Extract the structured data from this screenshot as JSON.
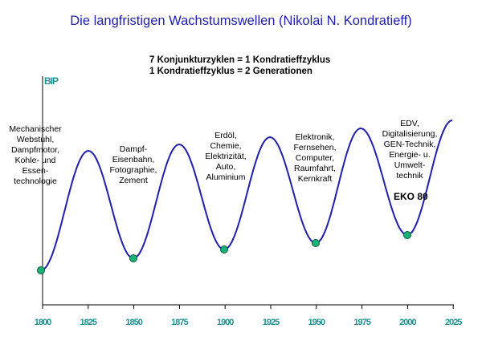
{
  "title": "Die langfristigen Wachstumswellen (Nikolai N. Kondratieff)",
  "subtitle_lines": [
    "7 Konjunkturzyklen = 1 Kondratieffzyklus",
    "1 Kondratieffzyklus = 2 Generationen"
  ],
  "y_axis_label": "BIP",
  "x_ticks": [
    "1800",
    "1825",
    "1850",
    "1875",
    "1900",
    "1925",
    "1950",
    "1975",
    "2000",
    "2025"
  ],
  "wave_labels": [
    [
      "Mechanischer",
      "Webstuhl,",
      "Dampfmotor,",
      "Kohle- und",
      "Essen-",
      "technologie"
    ],
    [
      "Dampf-",
      "Eisenbahn,",
      "Fotographie,",
      "Zement"
    ],
    [
      "Erdöl,",
      "Chemie,",
      "Elektrizität,",
      "Auto,",
      "Aluminium"
    ],
    [
      "Elektronik,",
      "Fernsehen,",
      "Computer,",
      "Raumfahrt,",
      "Kernkraft"
    ],
    [
      "EDV,",
      "Digitalisierung,",
      "GEN-Technik,",
      "Energie- u.",
      "Umwelt-",
      "technik"
    ]
  ],
  "eko_label": "EKO 80",
  "colors": {
    "title": "#1f1fa8",
    "axis_text": "#1f8f8f",
    "curve": "#1f1fa8",
    "marker": "#19b37a"
  }
}
